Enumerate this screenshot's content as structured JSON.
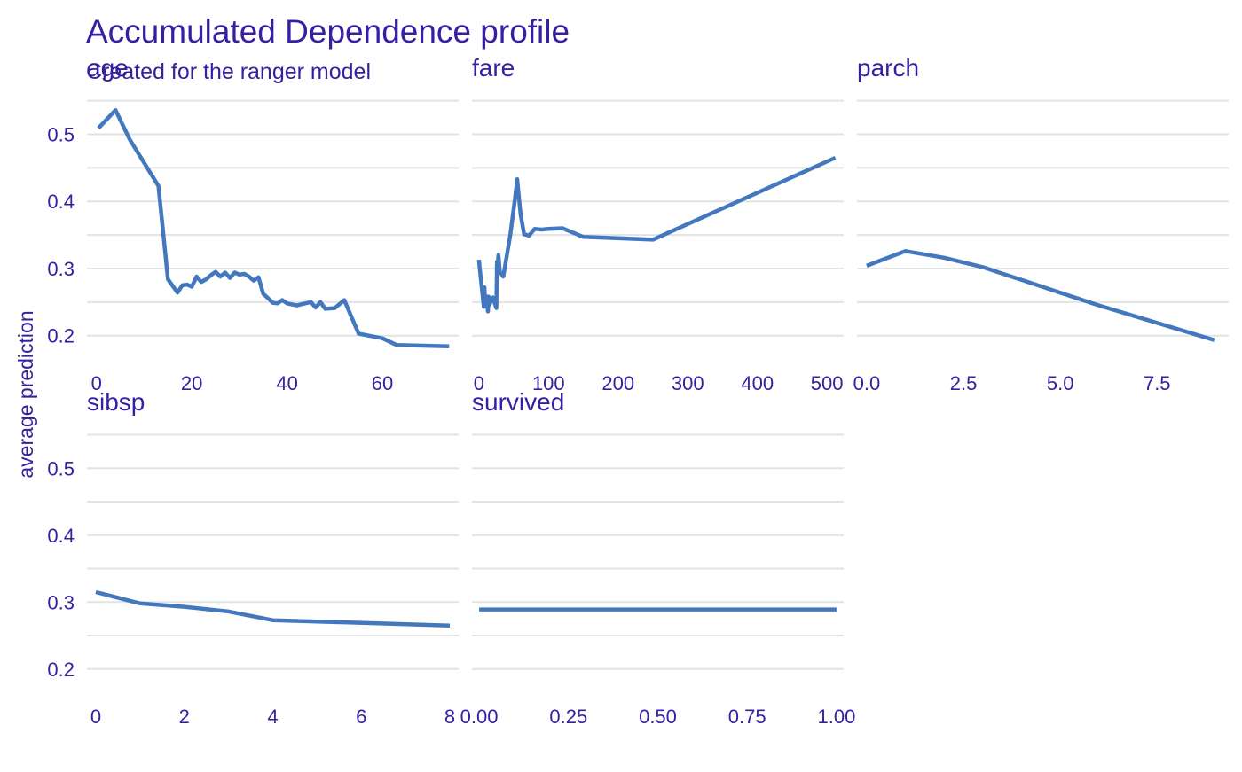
{
  "chart_data": {
    "type": "line",
    "title": "Accumulated Dependence profile",
    "subtitle": "Created for the ranger model",
    "ylabel": "average prediction",
    "xlabel": "",
    "ylim": [
      0.16,
      0.56
    ],
    "yticks": [
      "0.2",
      "0.3",
      "0.4",
      "0.5"
    ],
    "grid": true,
    "legend": "none",
    "colors": {
      "text": "#371ea3",
      "line": "#4378bf",
      "grid": "#e3e3e3",
      "background": "#ffffff"
    },
    "panels": [
      {
        "name": "age",
        "xlim": [
          -2,
          76
        ],
        "xticks": [
          0,
          20,
          40,
          60
        ],
        "xtick_labels": [
          "0",
          "20",
          "40",
          "60"
        ],
        "x": [
          0.42,
          4,
          7,
          13,
          15,
          17,
          18,
          19,
          20,
          21,
          22,
          23,
          24,
          25,
          26,
          27,
          28,
          29,
          30,
          31,
          32,
          33,
          34,
          35,
          36,
          37,
          38,
          39,
          40,
          42,
          45,
          46,
          47,
          48,
          50,
          52,
          55,
          60,
          63,
          74
        ],
        "y": [
          0.509,
          0.536,
          0.492,
          0.423,
          0.284,
          0.264,
          0.275,
          0.276,
          0.273,
          0.288,
          0.28,
          0.284,
          0.29,
          0.295,
          0.288,
          0.294,
          0.286,
          0.294,
          0.291,
          0.292,
          0.288,
          0.282,
          0.287,
          0.262,
          0.256,
          0.249,
          0.248,
          0.253,
          0.248,
          0.245,
          0.25,
          0.242,
          0.25,
          0.24,
          0.241,
          0.253,
          0.203,
          0.196,
          0.186,
          0.184
        ]
      },
      {
        "name": "fare",
        "xlim": [
          -10,
          524
        ],
        "xticks": [
          0,
          100,
          200,
          300,
          400,
          500
        ],
        "xtick_labels": [
          "0",
          "100",
          "200",
          "300",
          "400",
          "500"
        ],
        "x": [
          0,
          7,
          8,
          9,
          10,
          13,
          14,
          15,
          20,
          25,
          26,
          27,
          28,
          30,
          35,
          45,
          52,
          55,
          57,
          60,
          65,
          72,
          80,
          90,
          100,
          120,
          150,
          250,
          512
        ],
        "y": [
          0.313,
          0.243,
          0.272,
          0.245,
          0.259,
          0.236,
          0.258,
          0.246,
          0.257,
          0.241,
          0.31,
          0.305,
          0.32,
          0.295,
          0.288,
          0.35,
          0.405,
          0.433,
          0.41,
          0.38,
          0.351,
          0.349,
          0.359,
          0.358,
          0.359,
          0.36,
          0.347,
          0.343,
          0.465
        ]
      },
      {
        "name": "parch",
        "xlim": [
          -0.25,
          9.35
        ],
        "xticks": [
          0,
          2.5,
          5,
          7.5
        ],
        "xtick_labels": [
          "0.0",
          "2.5",
          "5.0",
          "7.5"
        ],
        "x": [
          0,
          1,
          2,
          3,
          4,
          5,
          6,
          9
        ],
        "y": [
          0.304,
          0.326,
          0.316,
          0.302,
          0.283,
          0.264,
          0.245,
          0.193
        ]
      },
      {
        "name": "sibsp",
        "xlim": [
          -0.2,
          8.2
        ],
        "xticks": [
          0,
          2,
          4,
          6,
          8
        ],
        "xtick_labels": [
          "0",
          "2",
          "4",
          "6",
          "8"
        ],
        "x": [
          0,
          1,
          2,
          3,
          4,
          5,
          8
        ],
        "y": [
          0.315,
          0.298,
          0.293,
          0.286,
          0.273,
          0.271,
          0.265
        ]
      },
      {
        "name": "survived",
        "xlim": [
          -0.02,
          1.02
        ],
        "xticks": [
          0,
          0.25,
          0.5,
          0.75,
          1
        ],
        "xtick_labels": [
          "0.00",
          "0.25",
          "0.50",
          "0.75",
          "1.00"
        ],
        "x": [
          0,
          1
        ],
        "y": [
          0.289,
          0.289
        ]
      }
    ]
  }
}
